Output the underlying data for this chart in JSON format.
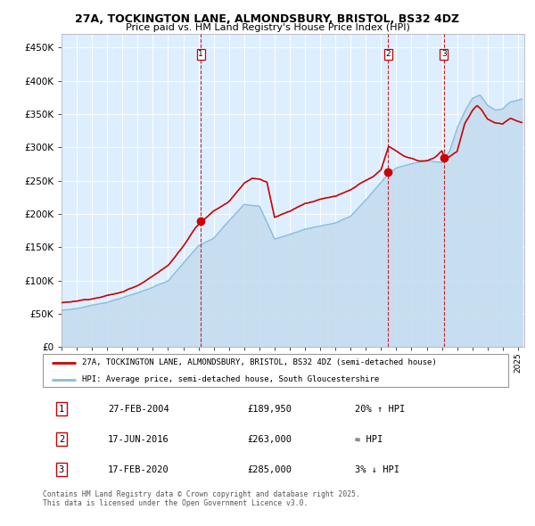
{
  "title_line1": "27A, TOCKINGTON LANE, ALMONDSBURY, BRISTOL, BS32 4DZ",
  "title_line2": "Price paid vs. HM Land Registry's House Price Index (HPI)",
  "legend_property": "27A, TOCKINGTON LANE, ALMONDSBURY, BRISTOL, BS32 4DZ (semi-detached house)",
  "legend_hpi": "HPI: Average price, semi-detached house, South Gloucestershire",
  "sale_dates": [
    "2004-02-27",
    "2016-06-17",
    "2020-02-17"
  ],
  "sale_prices": [
    189950,
    263000,
    285000
  ],
  "sale_labels": [
    "1",
    "2",
    "3"
  ],
  "sale_info": [
    {
      "label": "1",
      "date": "27-FEB-2004",
      "price": "£189,950",
      "hpi_rel": "20% ↑ HPI"
    },
    {
      "label": "2",
      "date": "17-JUN-2016",
      "price": "£263,000",
      "hpi_rel": "≈ HPI"
    },
    {
      "label": "3",
      "date": "17-FEB-2020",
      "price": "£285,000",
      "hpi_rel": "3% ↓ HPI"
    }
  ],
  "ylabel_ticks": [
    "£0",
    "£50K",
    "£100K",
    "£150K",
    "£200K",
    "£250K",
    "£300K",
    "£350K",
    "£400K",
    "£450K"
  ],
  "ytick_vals": [
    0,
    50000,
    100000,
    150000,
    200000,
    250000,
    300000,
    350000,
    400000,
    450000
  ],
  "ylim": [
    0,
    470000
  ],
  "property_color": "#cc0000",
  "hpi_color": "#8bbcdc",
  "hpi_fill_color": "#c5ddf0",
  "background_color": "#ddeeff",
  "grid_color": "#ffffff",
  "sale_vline_color": "#cc0000",
  "fig_bg": "#ffffff",
  "footer": "Contains HM Land Registry data © Crown copyright and database right 2025.\nThis data is licensed under the Open Government Licence v3.0."
}
